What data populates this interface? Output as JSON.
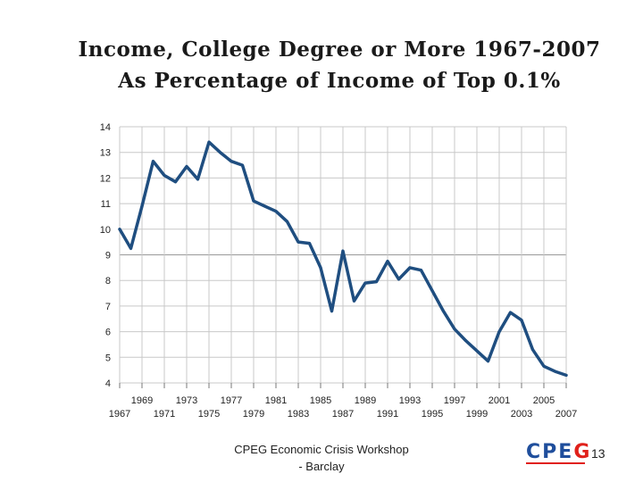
{
  "slide": {
    "title_line1": "Income, College Degree or More 1967-2007",
    "title_line2": "As Percentage of Income of Top 0.1%",
    "footer_line1": "CPEG Economic Crisis Workshop",
    "footer_line2": "- Barclay",
    "page_number": "13",
    "logo_letters": [
      "C",
      "P",
      "E",
      "G"
    ],
    "colors": {
      "line": "#1f4e80",
      "grid": "#c8c8c8",
      "logo_blue": "#1f4e9c",
      "logo_red": "#e0211b"
    }
  },
  "chart_data": {
    "type": "line",
    "title": "Income, College Degree or More 1967-2007 As Percentage of Income of Top 0.1%",
    "xlabel": "",
    "ylabel": "",
    "ylim": [
      4,
      14
    ],
    "xlim": [
      1967,
      2007
    ],
    "grid": true,
    "yticks": [
      "4",
      "5",
      "6",
      "7",
      "8",
      "9",
      "10",
      "11",
      "12",
      "13",
      "14"
    ],
    "xticks_lower": [
      "1967",
      "1971",
      "1975",
      "1979",
      "1983",
      "1987",
      "1991",
      "1995",
      "1999",
      "2003",
      "2007"
    ],
    "xticks_upper": [
      "1969",
      "1973",
      "1977",
      "1981",
      "1985",
      "1989",
      "1993",
      "1997",
      "2001",
      "2005"
    ],
    "series": [
      {
        "x": [
          1967,
          1968,
          1969,
          1970,
          1971,
          1972,
          1973,
          1974,
          1975,
          1976,
          1977,
          1978,
          1979,
          1980,
          1981,
          1982,
          1983,
          1984,
          1985,
          1986,
          1987,
          1988,
          1989,
          1990,
          1991,
          1992,
          1993,
          1994,
          1995,
          1996,
          1997,
          1998,
          1999,
          2000,
          2001,
          2002,
          2003,
          2004,
          2005,
          2006,
          2007
        ],
        "values": [
          10.0,
          9.25,
          10.9,
          12.65,
          12.1,
          11.85,
          12.45,
          11.95,
          13.4,
          13.0,
          12.65,
          12.5,
          11.1,
          10.9,
          10.7,
          10.3,
          9.5,
          9.45,
          8.5,
          6.8,
          9.15,
          7.2,
          7.9,
          7.95,
          8.75,
          8.05,
          8.5,
          8.4,
          7.6,
          6.8,
          6.1,
          5.65,
          5.25,
          4.85,
          6.0,
          6.75,
          6.45,
          5.3,
          4.65,
          4.45,
          4.3
        ]
      }
    ]
  }
}
